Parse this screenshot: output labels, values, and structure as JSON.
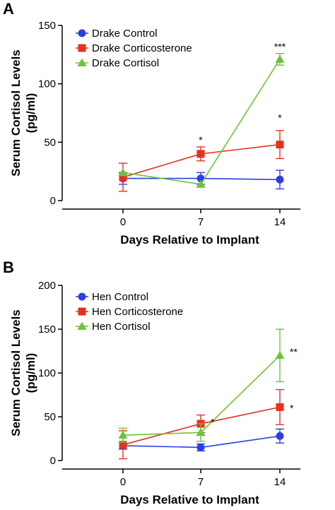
{
  "chart_data": [
    {
      "panel": "A",
      "type": "line",
      "xlabel": "Days Relative to Implant",
      "ylabel": "Serum Cortisol Levels (pg/ml)",
      "ylabel_lines": [
        "Serum Cortisol Levels",
        "(pg/ml)"
      ],
      "x": [
        0,
        7,
        14
      ],
      "x_tick_labels": [
        "0",
        "7",
        "14"
      ],
      "ylim": [
        0,
        150
      ],
      "y_ticks": [
        0,
        50,
        100,
        150
      ],
      "grid": false,
      "legend_position": "top-left",
      "series": [
        {
          "name": "Drake Control",
          "color": "#2b3fe0",
          "marker": "circle",
          "values": [
            19,
            19,
            18
          ],
          "error": [
            5,
            5,
            8
          ]
        },
        {
          "name": "Drake Corticosterone",
          "color": "#e8301e",
          "marker": "square",
          "values": [
            20,
            40,
            48
          ],
          "error": [
            12,
            6,
            12
          ]
        },
        {
          "name": "Drake Cortisol",
          "color": "#6cc33a",
          "marker": "triangle",
          "values": [
            24,
            14,
            121
          ],
          "error": [
            0,
            0,
            5
          ]
        }
      ],
      "annotations": [
        {
          "x": 7,
          "y": 52,
          "text": "*"
        },
        {
          "x": 14,
          "y": 71,
          "text": "*"
        },
        {
          "x": 14,
          "y": 132,
          "text": "***"
        }
      ]
    },
    {
      "panel": "B",
      "type": "line",
      "xlabel": "Days Relative to Implant",
      "ylabel": "Serum Cortisol Levels (pg/ml)",
      "ylabel_lines": [
        "Serum Cortisol Levels",
        "(pg/ml)"
      ],
      "x": [
        0,
        7,
        14
      ],
      "x_tick_labels": [
        "0",
        "7",
        "14"
      ],
      "ylim": [
        0,
        200
      ],
      "y_ticks": [
        0,
        50,
        100,
        150,
        200
      ],
      "grid": false,
      "legend_position": "top-left",
      "series": [
        {
          "name": "Hen Control",
          "color": "#2b3fe0",
          "marker": "circle",
          "values": [
            17,
            15,
            28
          ],
          "error": [
            4,
            4,
            8
          ]
        },
        {
          "name": "Hen Corticosterone",
          "color": "#e8301e",
          "marker": "square",
          "values": [
            18,
            42,
            61
          ],
          "error": [
            16,
            10,
            20
          ]
        },
        {
          "name": "Hen Cortisol",
          "color": "#6cc33a",
          "marker": "triangle",
          "values": [
            29,
            32,
            120
          ],
          "error": [
            8,
            10,
            30
          ]
        }
      ],
      "annotations": [
        {
          "x": 7,
          "y": 44,
          "text": "*",
          "dx": 1
        },
        {
          "x": 14,
          "y": 124,
          "text": "**",
          "dx": 1
        },
        {
          "x": 14,
          "y": 60,
          "text": "*",
          "dx": 1
        }
      ]
    }
  ]
}
